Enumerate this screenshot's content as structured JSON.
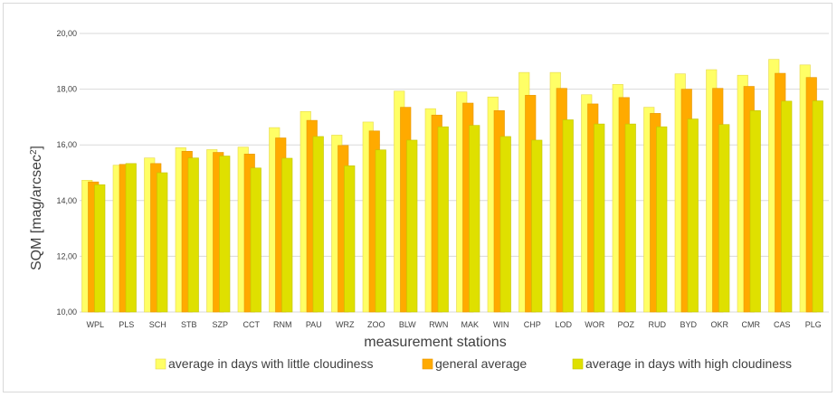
{
  "chart_data": {
    "type": "bar",
    "xlabel": "measurement stations",
    "ylabel_main": "SQM [mag/arcsec",
    "ylabel_sup": "2",
    "ylabel_end": "]",
    "ylim": [
      10,
      20
    ],
    "yticks": [
      "10,00",
      "12,00",
      "14,00",
      "16,00",
      "18,00",
      "20,00"
    ],
    "ytick_values": [
      10,
      12,
      14,
      16,
      18,
      20
    ],
    "grid": true,
    "legend_position": "bottom",
    "categories": [
      "WPL",
      "PLS",
      "SCH",
      "STB",
      "SZP",
      "CCT",
      "RNM",
      "PAU",
      "WRZ",
      "ZOO",
      "BLW",
      "RWN",
      "MAK",
      "WIN",
      "CHP",
      "LOD",
      "WOR",
      "POZ",
      "RUD",
      "BYD",
      "OKR",
      "CMR",
      "CAS",
      "PLG"
    ],
    "series": [
      {
        "name": "average in days with little cloudiness",
        "color": "#ffff66",
        "stroke": "#e6d84a",
        "values": [
          14.73,
          15.27,
          15.53,
          15.9,
          15.83,
          15.92,
          16.62,
          17.2,
          16.35,
          16.82,
          17.93,
          17.3,
          17.9,
          17.72,
          18.6,
          18.6,
          17.8,
          18.17,
          17.35,
          18.55,
          18.7,
          18.5,
          19.07,
          18.87
        ]
      },
      {
        "name": "general average",
        "color": "#ffaa00",
        "stroke": "#e69500",
        "values": [
          14.67,
          15.3,
          15.33,
          15.77,
          15.73,
          15.67,
          16.25,
          16.88,
          15.98,
          16.5,
          17.35,
          17.07,
          17.5,
          17.23,
          17.78,
          18.03,
          17.47,
          17.7,
          17.13,
          18.0,
          18.03,
          18.1,
          18.57,
          18.42
        ]
      },
      {
        "name": "average in days with high cloudiness",
        "color": "#dfe000",
        "stroke": "#c4c400",
        "values": [
          14.57,
          15.33,
          15.0,
          15.53,
          15.6,
          15.17,
          15.52,
          16.3,
          15.25,
          15.82,
          16.17,
          16.65,
          16.7,
          16.3,
          16.17,
          16.9,
          16.75,
          16.75,
          16.65,
          16.93,
          16.73,
          17.23,
          17.57,
          17.58
        ]
      }
    ]
  }
}
